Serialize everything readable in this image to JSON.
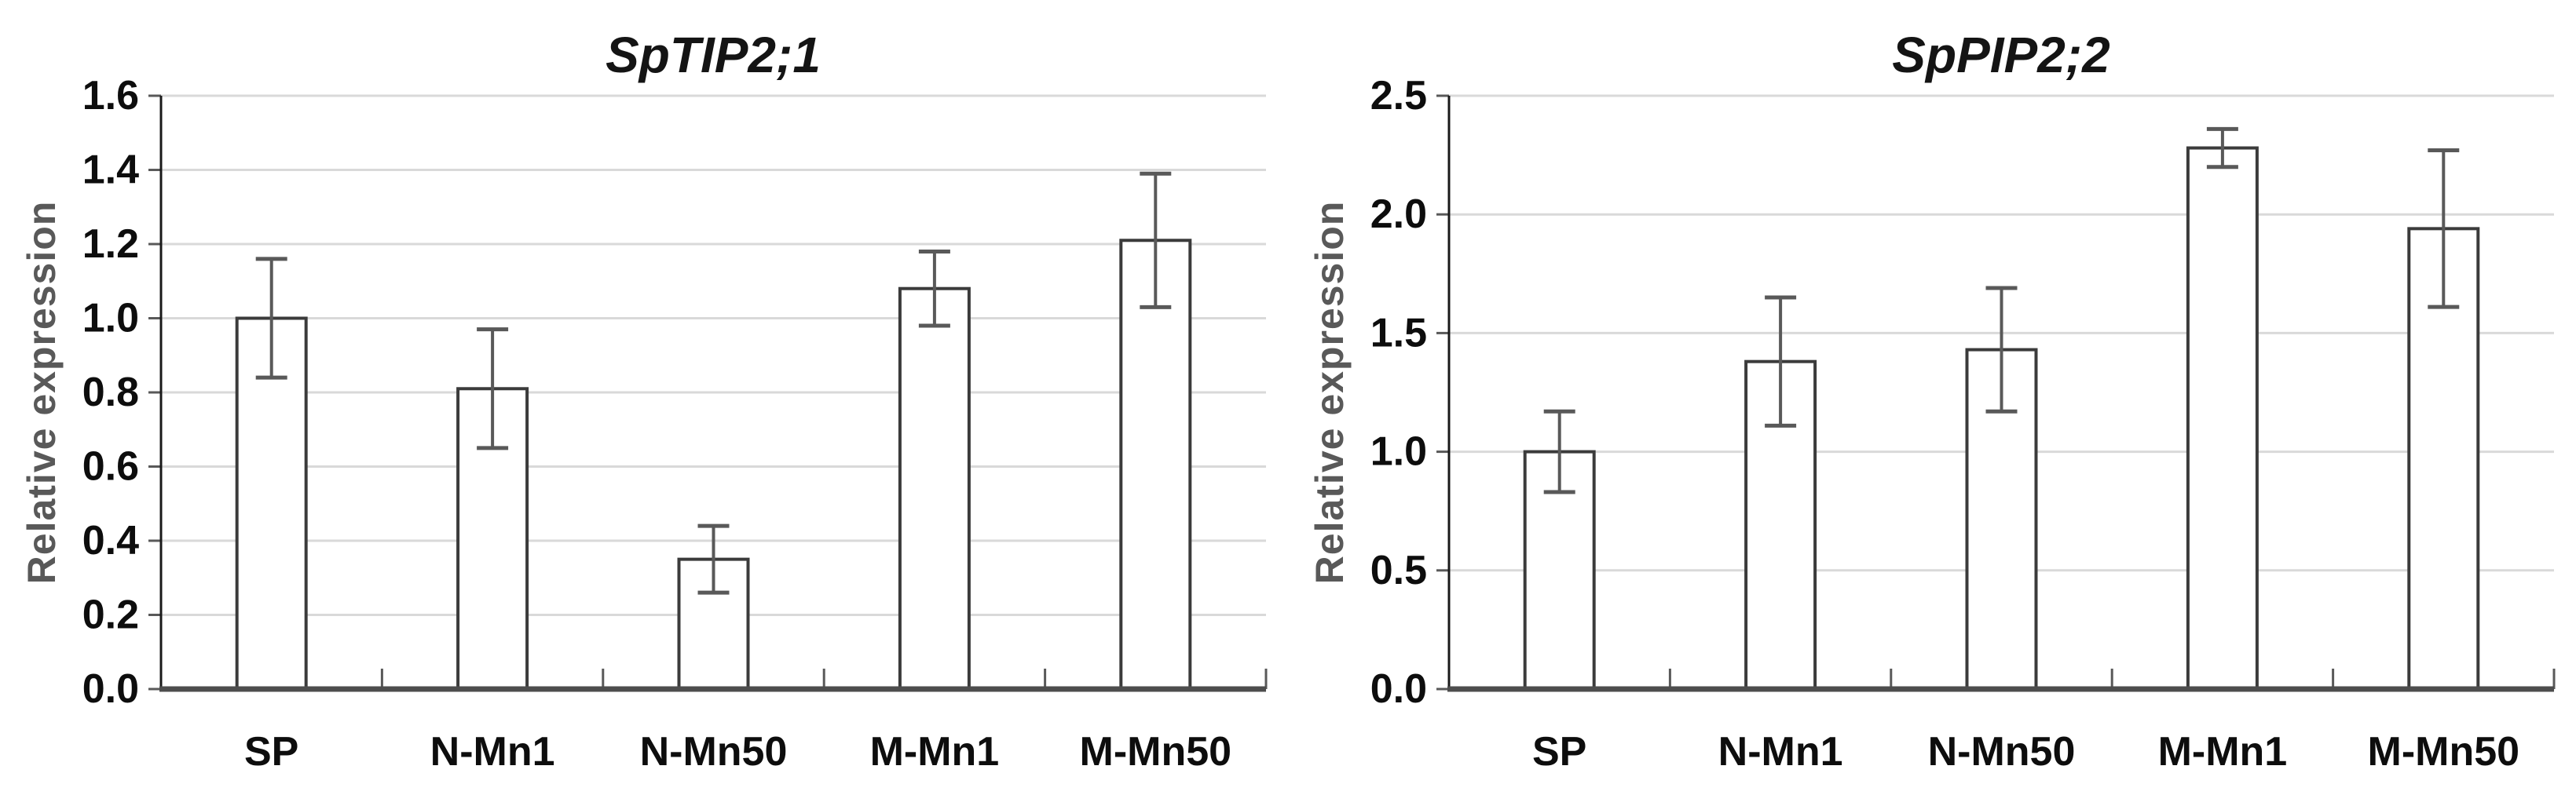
{
  "figure": {
    "background": "#ffffff",
    "description": "Two qRT-PCR relative expression bar charts with error bars"
  },
  "style": {
    "bar_fill": "#ffffff",
    "bar_stroke": "#3b3b3b",
    "error_color": "#595959",
    "gridline_color": "#d9d9d9",
    "y_axis_color": "#1a1a1a",
    "baseline_color": "#4d4d4d",
    "tick_color": "#595959",
    "tick_label_color": "#0d0d0d",
    "title_color": "#141414",
    "ylabel_color": "#595959"
  },
  "chart_data": [
    {
      "type": "bar",
      "title": "SpTIP2;1",
      "ylabel": "Relative expression",
      "xlabel": "",
      "categories": [
        "SP",
        "N-Mn1",
        "N-Mn50",
        "M-Mn1",
        "M-Mn50"
      ],
      "values": [
        1.0,
        0.81,
        0.35,
        1.08,
        1.21
      ],
      "errors_plus": [
        0.16,
        0.16,
        0.09,
        0.1,
        0.18
      ],
      "errors_minus": [
        0.16,
        0.16,
        0.09,
        0.1,
        0.18
      ],
      "ylim": [
        0,
        1.6
      ],
      "ytick_values": [
        0,
        0.2,
        0.4,
        0.6,
        0.8,
        1.0,
        1.2,
        1.4,
        1.6
      ],
      "ytick_labels": [
        "0.0",
        "0.2",
        "0.4",
        "0.6",
        "0.8",
        "1.0",
        "1.2",
        "1.4",
        "1.6"
      ],
      "grid": true,
      "legend": "none"
    },
    {
      "type": "bar",
      "title": "SpPIP2;2",
      "ylabel": "Relative expression",
      "xlabel": "",
      "categories": [
        "SP",
        "N-Mn1",
        "N-Mn50",
        "M-Mn1",
        "M-Mn50"
      ],
      "values": [
        1.0,
        1.38,
        1.43,
        2.28,
        1.94
      ],
      "errors_plus": [
        0.17,
        0.27,
        0.26,
        0.08,
        0.33
      ],
      "errors_minus": [
        0.17,
        0.27,
        0.26,
        0.08,
        0.33
      ],
      "ylim": [
        0,
        2.5
      ],
      "ytick_values": [
        0,
        0.5,
        1.0,
        1.5,
        2.0,
        2.5
      ],
      "ytick_labels": [
        "0.0",
        "0.5",
        "1.0",
        "1.5",
        "2.0",
        "2.5"
      ],
      "grid": true,
      "legend": "none"
    }
  ]
}
